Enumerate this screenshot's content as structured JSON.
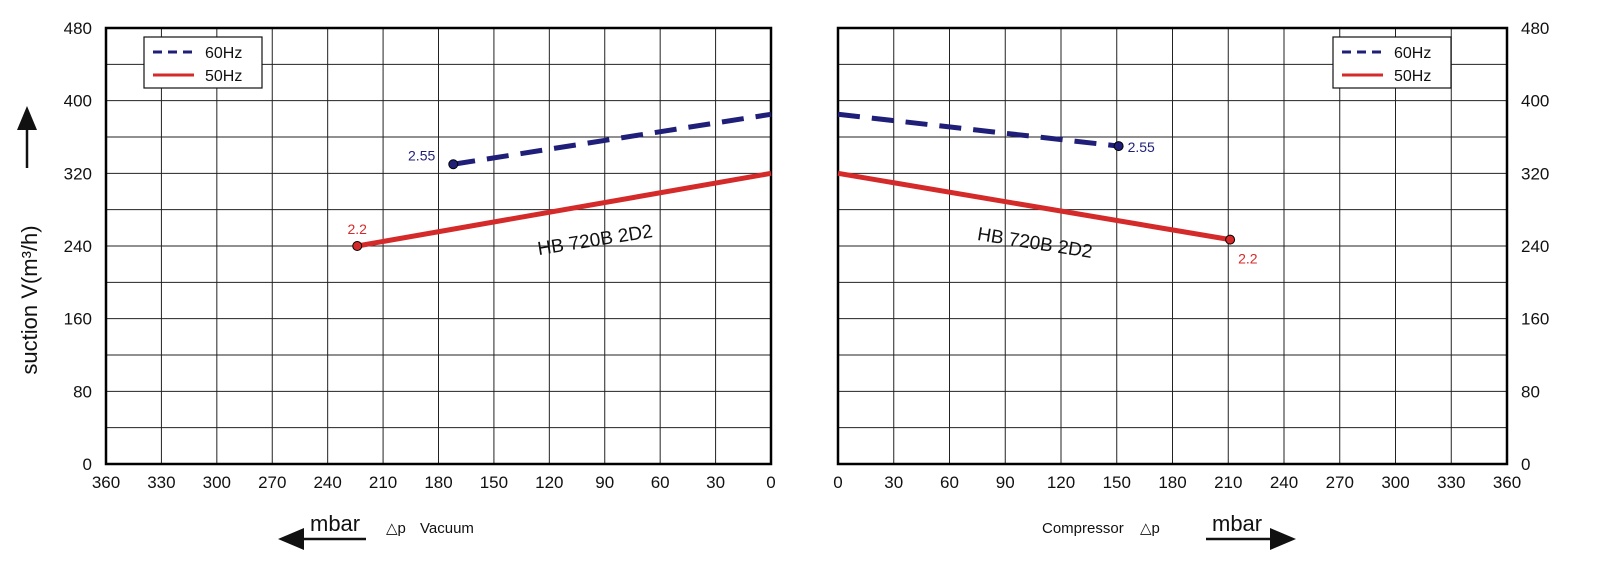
{
  "colors": {
    "hz60": "#1f1f7a",
    "hz50": "#d42a2a",
    "grid": "#222222",
    "axis": "#000000"
  },
  "ylabel": "suction V(m³/h)",
  "chart_data": [
    {
      "type": "line",
      "panel": "vacuum",
      "model_label": "HB 720B 2D2",
      "xlabel": {
        "unit": "mbar",
        "symbol": "△p",
        "text": "Vacuum"
      },
      "xlim": [
        360,
        0
      ],
      "ylim": [
        0,
        480
      ],
      "x_ticks": [
        360,
        330,
        300,
        270,
        240,
        210,
        180,
        150,
        120,
        90,
        60,
        30,
        0
      ],
      "y_ticks": [
        0,
        80,
        160,
        240,
        320,
        400,
        480
      ],
      "y_axis_side": "left",
      "grid": true,
      "legend_position": "top-left",
      "series": [
        {
          "name": "60Hz",
          "style": "dashed",
          "x": [
            172,
            0
          ],
          "y": [
            330,
            385
          ],
          "end_label": "2.55",
          "end_label_at": "start"
        },
        {
          "name": "50Hz",
          "style": "solid",
          "x": [
            224,
            0
          ],
          "y": [
            240,
            320
          ],
          "end_label": "2.2",
          "end_label_at": "start"
        }
      ]
    },
    {
      "type": "line",
      "panel": "compressor",
      "model_label": "HB 720B 2D2",
      "xlabel": {
        "unit": "mbar",
        "symbol": "△p",
        "text": "Compressor"
      },
      "xlim": [
        0,
        360
      ],
      "ylim": [
        0,
        480
      ],
      "x_ticks": [
        0,
        30,
        60,
        90,
        120,
        150,
        180,
        210,
        240,
        270,
        300,
        330,
        360
      ],
      "y_ticks": [
        0,
        80,
        160,
        240,
        320,
        400,
        480
      ],
      "y_axis_side": "right",
      "grid": true,
      "legend_position": "top-right",
      "series": [
        {
          "name": "60Hz",
          "style": "dashed",
          "x": [
            0,
            151
          ],
          "y": [
            385,
            350
          ],
          "end_label": "2.55",
          "end_label_at": "end"
        },
        {
          "name": "50Hz",
          "style": "solid",
          "x": [
            0,
            211
          ],
          "y": [
            320,
            247
          ],
          "end_label": "2.2",
          "end_label_at": "end"
        }
      ]
    }
  ]
}
